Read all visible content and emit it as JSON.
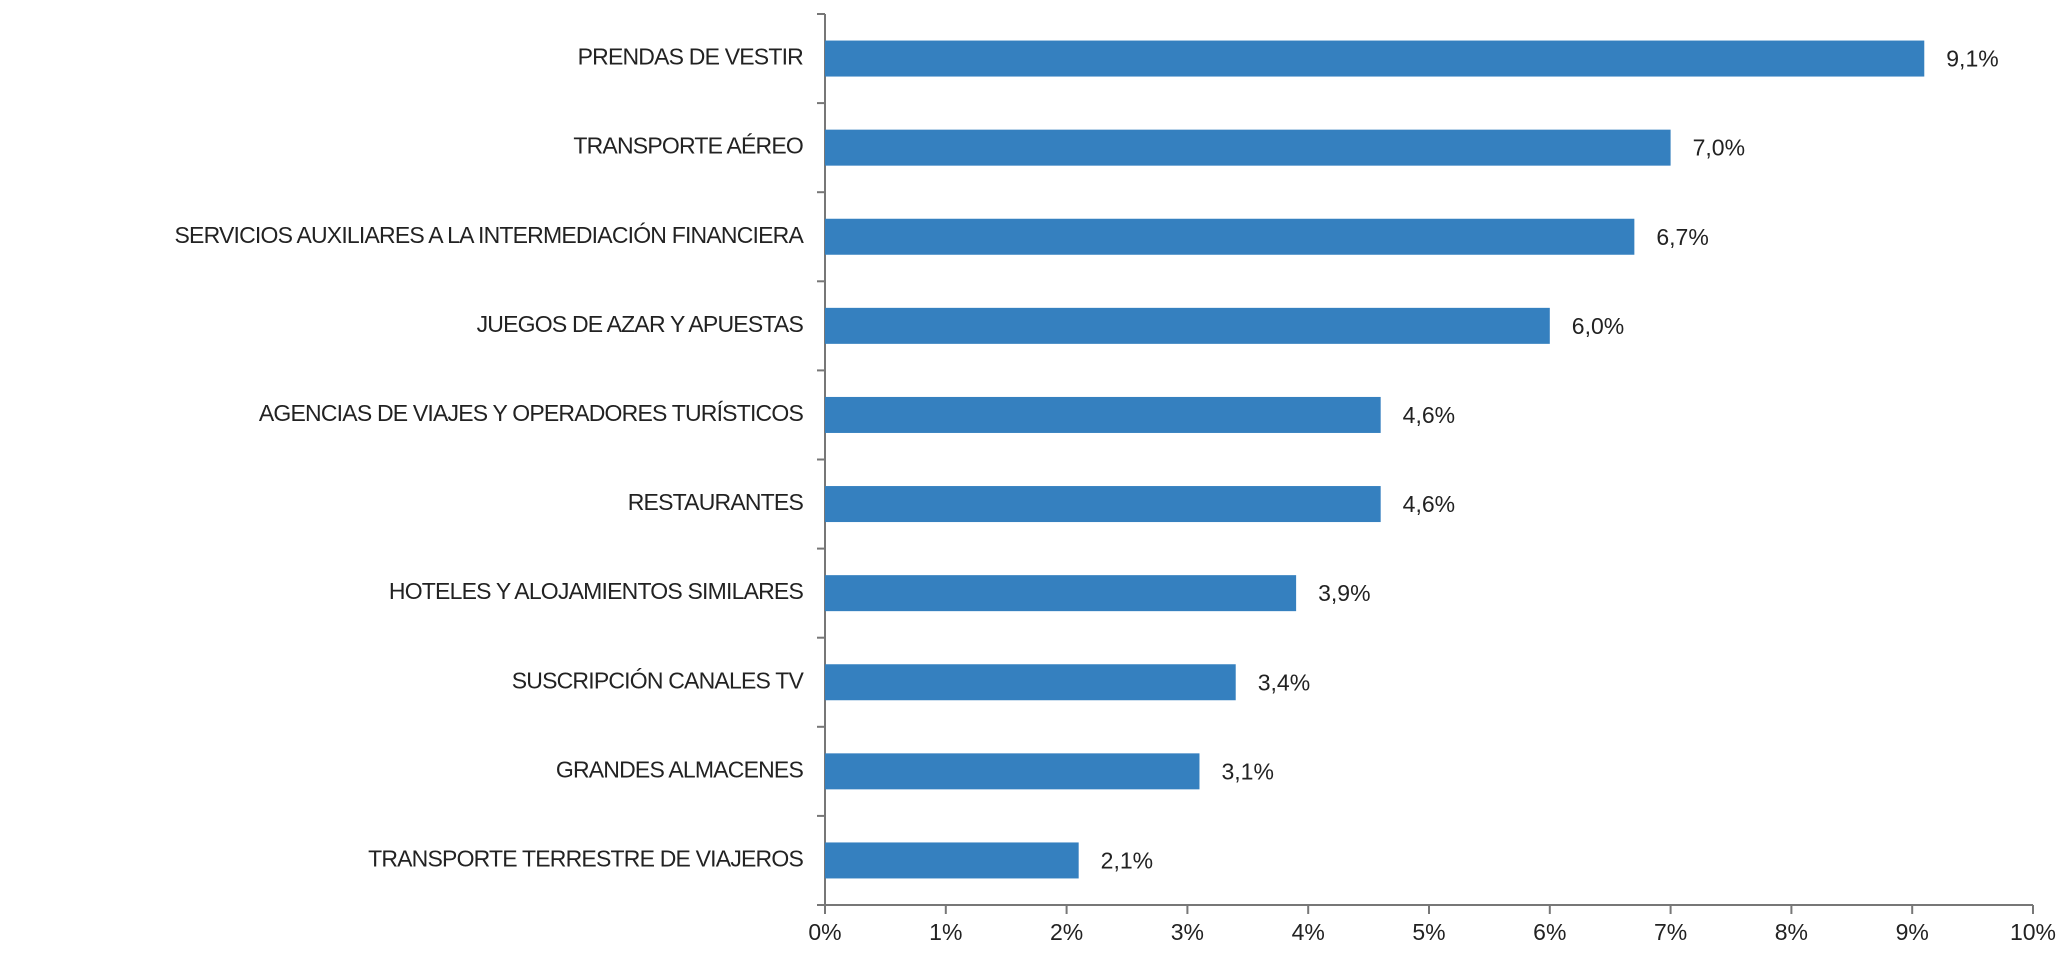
{
  "chart_data": {
    "type": "hbar",
    "categories": [
      "PRENDAS DE VESTIR",
      "TRANSPORTE AÉREO",
      "SERVICIOS AUXILIARES A LA INTERMEDIACIÓN FINANCIERA",
      "JUEGOS DE AZAR Y APUESTAS",
      "AGENCIAS DE VIAJES Y OPERADORES TURÍSTICOS",
      "RESTAURANTES",
      "HOTELES  Y ALOJAMIENTOS SIMILARES",
      "SUSCRIPCIÓN CANALES TV",
      "GRANDES ALMACENES",
      "TRANSPORTE TERRESTRE DE VIAJEROS"
    ],
    "values": [
      9.1,
      7.0,
      6.7,
      6.0,
      4.6,
      4.6,
      3.9,
      3.4,
      3.1,
      2.1
    ],
    "value_labels": [
      "9,1%",
      "7,0%",
      "6,7%",
      "6,0%",
      "4,6%",
      "4,6%",
      "3,9%",
      "3,4%",
      "3,1%",
      "2,1%"
    ],
    "color": "#3580bf",
    "xlim": [
      0,
      10
    ],
    "xticks": [
      {
        "value": 0,
        "label": "0%"
      },
      {
        "value": 1,
        "label": "1%"
      },
      {
        "value": 2,
        "label": "2%"
      },
      {
        "value": 3,
        "label": "3%"
      },
      {
        "value": 4,
        "label": "4%"
      },
      {
        "value": 5,
        "label": "5%"
      },
      {
        "value": 6,
        "label": "6%"
      },
      {
        "value": 7,
        "label": "7%"
      },
      {
        "value": 8,
        "label": "8%"
      },
      {
        "value": 9,
        "label": "9%"
      },
      {
        "value": 10,
        "label": "10%"
      }
    ]
  }
}
